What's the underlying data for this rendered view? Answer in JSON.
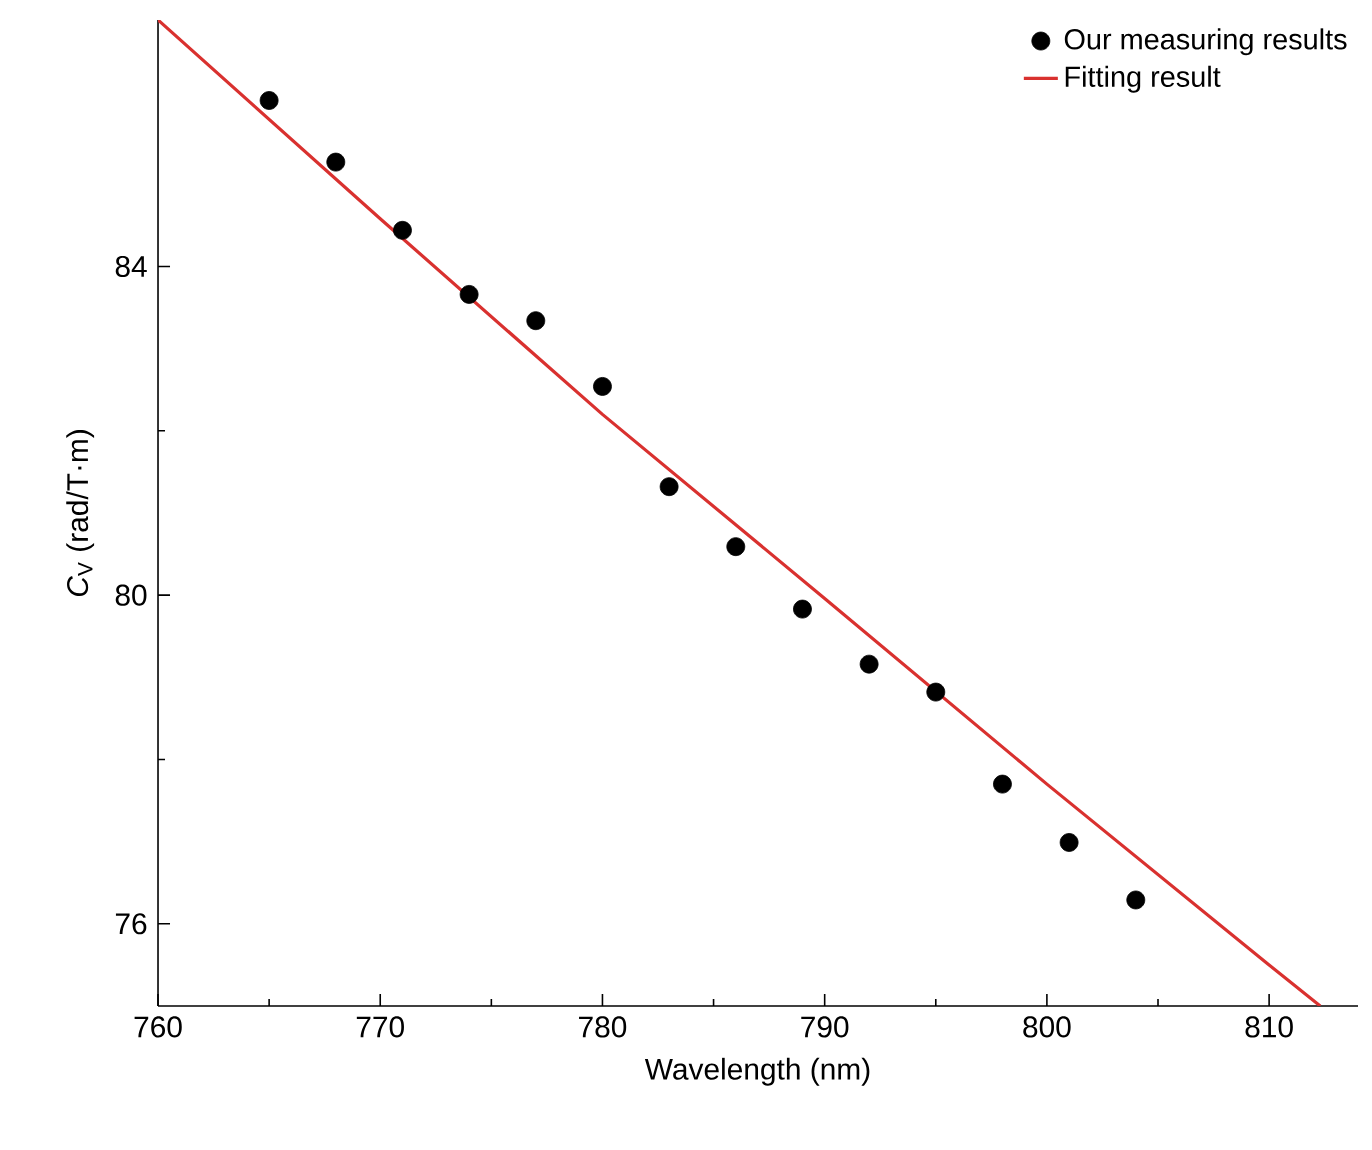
{
  "chart_data": {
    "type": "scatter",
    "xlabel": "Wavelength (nm)",
    "ylabel": "*C*$_{V}$ (rad/T·m)",
    "xlim": [
      760,
      814
    ],
    "ylim": [
      75,
      87
    ],
    "xticks": [
      760,
      770,
      780,
      790,
      800,
      810
    ],
    "yticks": [
      76,
      80,
      84
    ],
    "legend": "top right",
    "grid": false,
    "series": [
      {
        "name": "Our measuring results",
        "marker": "circle",
        "color": "#000000",
        "x": [
          765,
          768,
          771,
          774,
          777,
          780,
          783,
          786,
          789,
          792,
          795,
          798,
          801,
          804
        ],
        "values": [
          86.02,
          85.27,
          84.44,
          83.66,
          83.34,
          82.54,
          81.32,
          80.59,
          79.83,
          79.16,
          78.82,
          77.7,
          76.99,
          76.29
        ]
      },
      {
        "name": "Fitting result",
        "type": "line",
        "marker": "none",
        "line_style": "solid",
        "color": "#d9312f",
        "x": [
          760,
          770,
          780,
          790,
          800,
          810,
          812.3
        ],
        "values": [
          87.0,
          84.58,
          82.2,
          79.96,
          77.7,
          75.5,
          75.0
        ]
      }
    ]
  }
}
